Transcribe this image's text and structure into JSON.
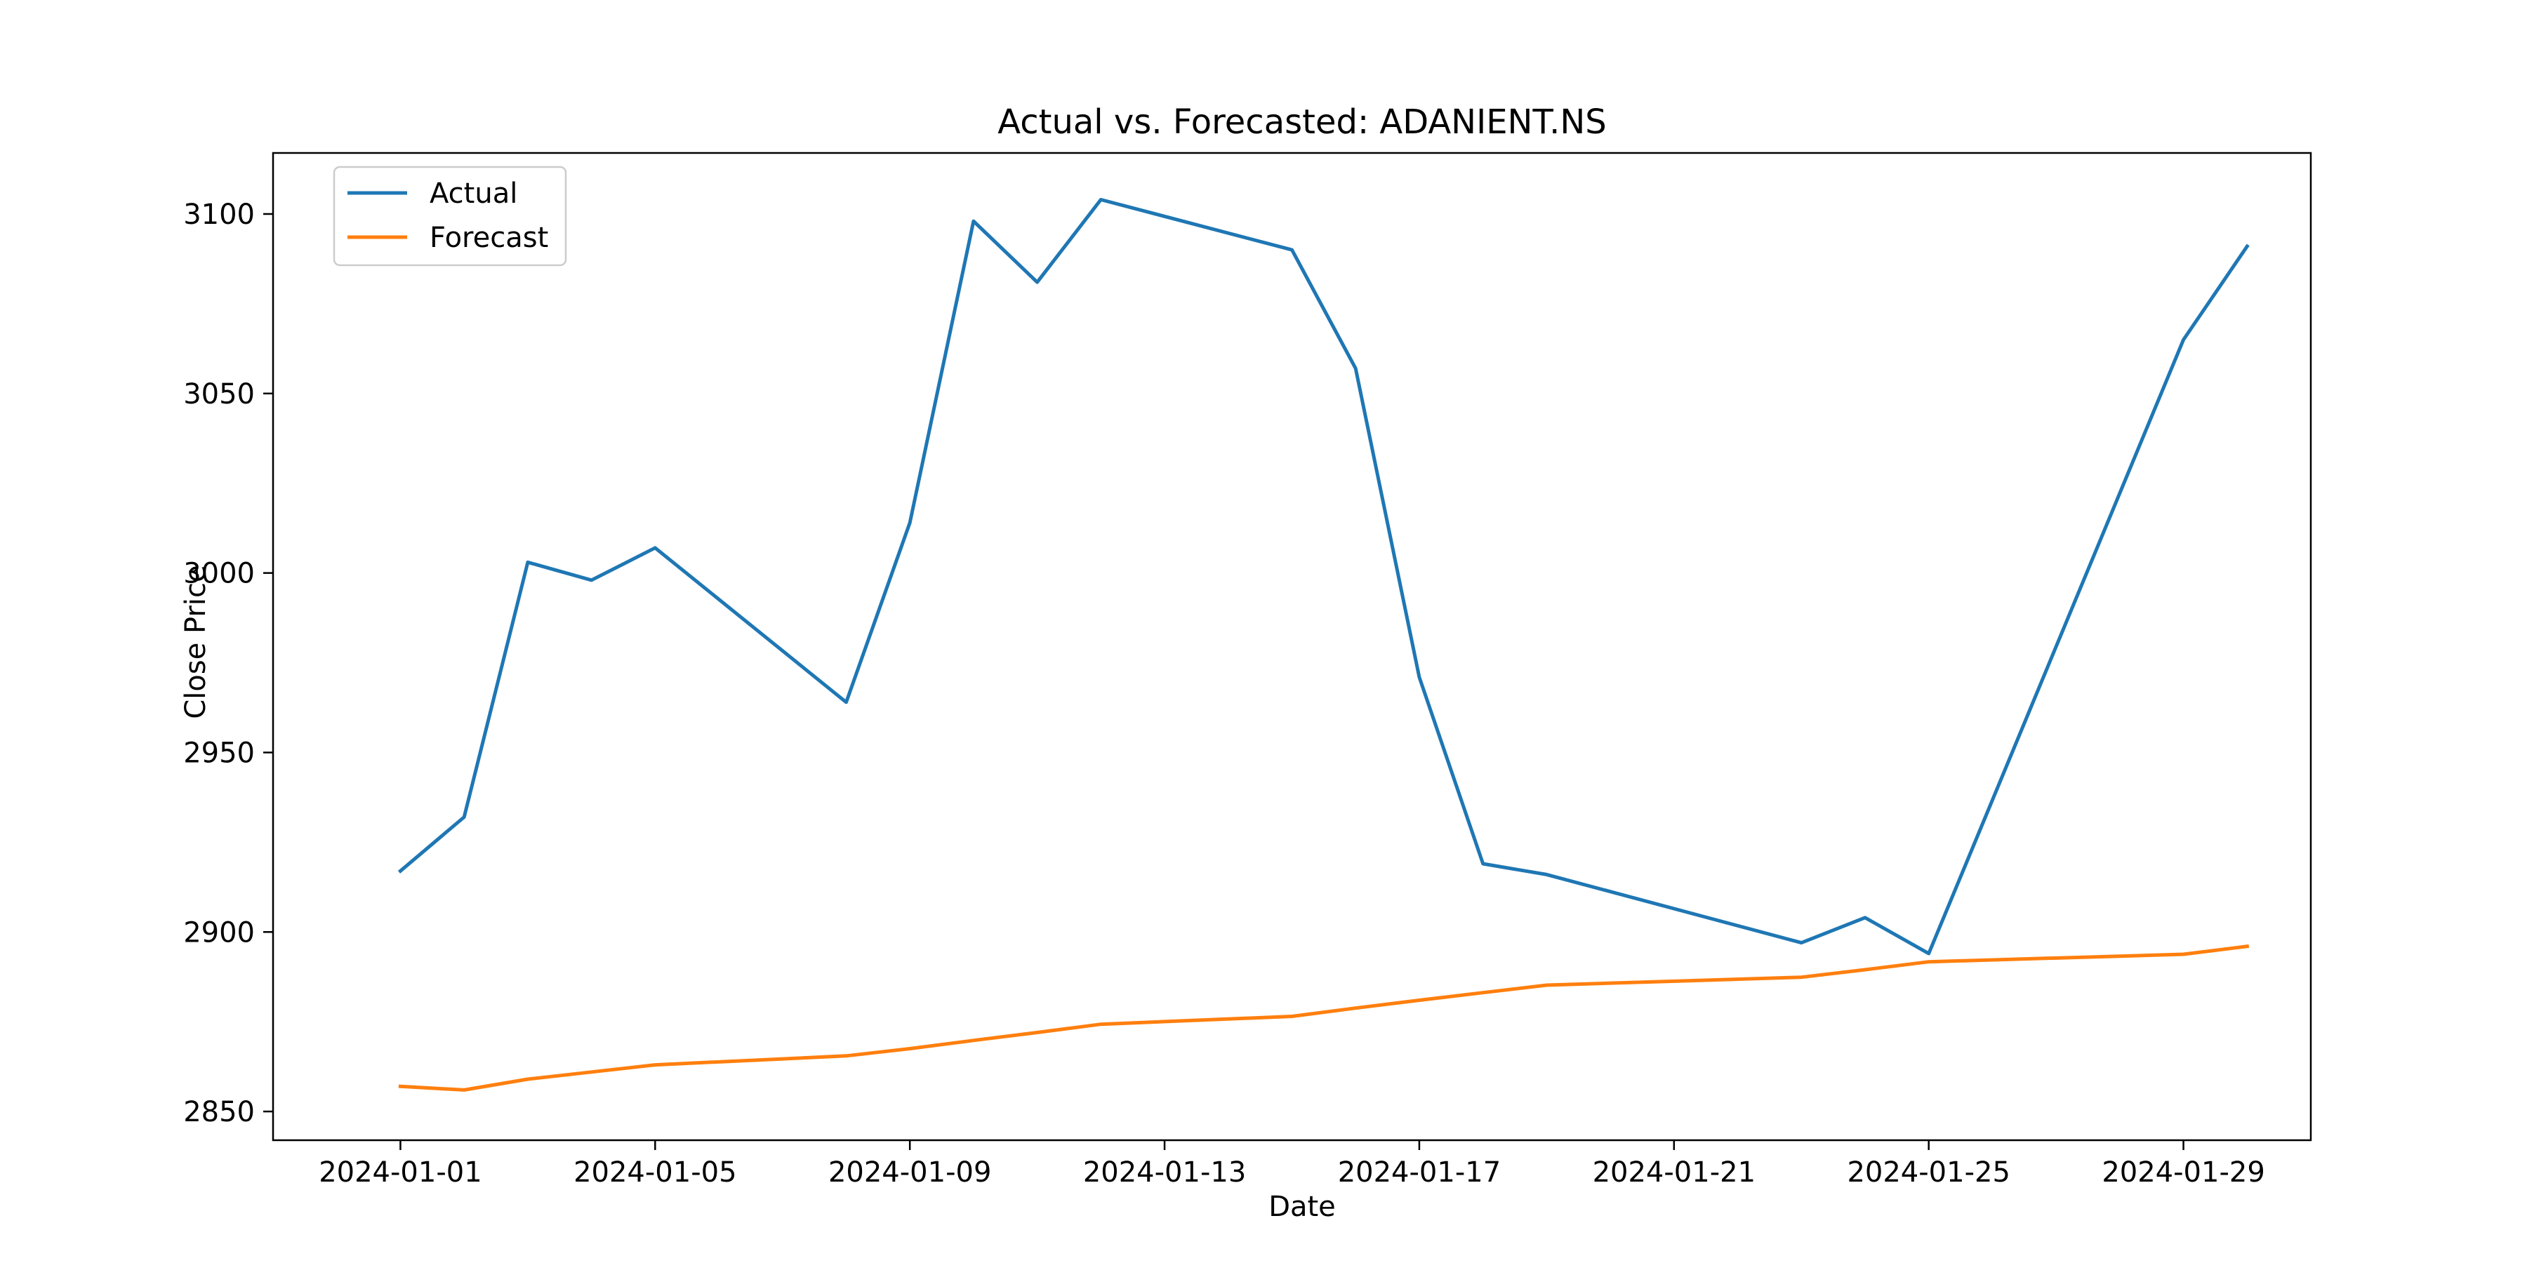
{
  "chart_data": {
    "type": "line",
    "title": "Actual vs. Forecasted: ADANIENT.NS",
    "xlabel": "Date",
    "ylabel": "Close Price",
    "x_type": "date",
    "xlim": [
      "2023-12-30",
      "2024-01-31"
    ],
    "ylim": [
      2842,
      3117
    ],
    "xticks": [
      "2024-01-01",
      "2024-01-05",
      "2024-01-09",
      "2024-01-13",
      "2024-01-17",
      "2024-01-21",
      "2024-01-25",
      "2024-01-29"
    ],
    "yticks": [
      2850,
      2900,
      2950,
      3000,
      3050,
      3100
    ],
    "grid": false,
    "legend": "top-left",
    "series": [
      {
        "name": "Actual",
        "color": "#1f77b4",
        "points": [
          [
            "2024-01-01",
            2917
          ],
          [
            "2024-01-02",
            2932
          ],
          [
            "2024-01-03",
            3003
          ],
          [
            "2024-01-04",
            2998
          ],
          [
            "2024-01-05",
            3007
          ],
          [
            "2024-01-08",
            2964
          ],
          [
            "2024-01-09",
            3014
          ],
          [
            "2024-01-10",
            3098
          ],
          [
            "2024-01-11",
            3081
          ],
          [
            "2024-01-12",
            3104
          ],
          [
            "2024-01-15",
            3090
          ],
          [
            "2024-01-16",
            3057
          ],
          [
            "2024-01-17",
            2971
          ],
          [
            "2024-01-18",
            2919
          ],
          [
            "2024-01-19",
            2916
          ],
          [
            "2024-01-23",
            2897
          ],
          [
            "2024-01-24",
            2904
          ],
          [
            "2024-01-25",
            2894
          ],
          [
            "2024-01-29",
            3065
          ],
          [
            "2024-01-30",
            3091
          ]
        ]
      },
      {
        "name": "Forecast",
        "color": "#ff7f0e",
        "points": [
          [
            "2024-01-01",
            2857
          ],
          [
            "2024-01-02",
            2856
          ],
          [
            "2024-01-03",
            2859
          ],
          [
            "2024-01-04",
            2861
          ],
          [
            "2024-01-05",
            2863
          ],
          [
            "2024-01-08",
            2865.5
          ],
          [
            "2024-01-09",
            2867.5
          ],
          [
            "2024-01-10",
            2869.8
          ],
          [
            "2024-01-11",
            2872
          ],
          [
            "2024-01-12",
            2874.3
          ],
          [
            "2024-01-15",
            2876.5
          ],
          [
            "2024-01-16",
            2878.8
          ],
          [
            "2024-01-17",
            2881
          ],
          [
            "2024-01-18",
            2883.1
          ],
          [
            "2024-01-19",
            2885.2
          ],
          [
            "2024-01-23",
            2887.4
          ],
          [
            "2024-01-24",
            2889.5
          ],
          [
            "2024-01-25",
            2891.7
          ],
          [
            "2024-01-29",
            2893.8
          ],
          [
            "2024-01-30",
            2896
          ]
        ]
      }
    ]
  }
}
